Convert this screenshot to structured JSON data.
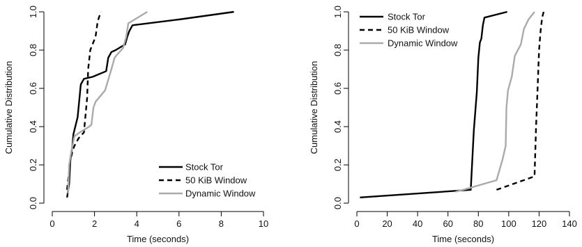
{
  "chart_data": [
    {
      "type": "line",
      "title": "",
      "xlabel": "Time (seconds)",
      "ylabel": "Cumulative Distribution",
      "xlim": [
        0,
        10
      ],
      "ylim": [
        0,
        1
      ],
      "xticks": [
        "0",
        "2",
        "4",
        "6",
        "8",
        "10"
      ],
      "yticks": [
        "0.0",
        "0.2",
        "0.4",
        "0.6",
        "0.8",
        "1.0"
      ],
      "grid": false,
      "legend_position": "bottom-right",
      "series": [
        {
          "name": "Stock Tor",
          "color": "#000000",
          "dash": "solid",
          "points": [
            [
              0.7,
              0.03
            ],
            [
              0.8,
              0.1
            ],
            [
              0.85,
              0.22
            ],
            [
              0.95,
              0.3
            ],
            [
              1.0,
              0.36
            ],
            [
              1.2,
              0.45
            ],
            [
              1.35,
              0.62
            ],
            [
              1.5,
              0.65
            ],
            [
              1.9,
              0.66
            ],
            [
              2.55,
              0.69
            ],
            [
              2.65,
              0.76
            ],
            [
              2.8,
              0.79
            ],
            [
              3.0,
              0.8
            ],
            [
              3.45,
              0.83
            ],
            [
              3.55,
              0.87
            ],
            [
              3.65,
              0.9
            ],
            [
              3.8,
              0.93
            ],
            [
              6.0,
              0.96
            ],
            [
              8.6,
              1.0
            ]
          ]
        },
        {
          "name": "50 KiB Window",
          "color": "#000000",
          "dash": "dashed",
          "points": [
            [
              0.7,
              0.07
            ],
            [
              0.85,
              0.22
            ],
            [
              0.95,
              0.27
            ],
            [
              1.05,
              0.3
            ],
            [
              1.25,
              0.34
            ],
            [
              1.5,
              0.37
            ],
            [
              1.65,
              0.55
            ],
            [
              1.7,
              0.7
            ],
            [
              1.8,
              0.8
            ],
            [
              2.05,
              0.87
            ],
            [
              2.15,
              0.95
            ],
            [
              2.3,
              1.0
            ]
          ]
        },
        {
          "name": "Dynamic Window",
          "color": "#aaaaaa",
          "dash": "solid",
          "points": [
            [
              0.75,
              0.05
            ],
            [
              0.8,
              0.2
            ],
            [
              0.9,
              0.27
            ],
            [
              1.05,
              0.35
            ],
            [
              1.3,
              0.37
            ],
            [
              1.75,
              0.4
            ],
            [
              1.85,
              0.41
            ],
            [
              1.95,
              0.5
            ],
            [
              2.05,
              0.53
            ],
            [
              2.5,
              0.59
            ],
            [
              2.8,
              0.7
            ],
            [
              2.95,
              0.76
            ],
            [
              3.1,
              0.78
            ],
            [
              3.35,
              0.81
            ],
            [
              3.5,
              0.87
            ],
            [
              3.6,
              0.94
            ],
            [
              3.9,
              0.96
            ],
            [
              4.5,
              1.0
            ]
          ]
        }
      ]
    },
    {
      "type": "line",
      "title": "",
      "xlabel": "Time (seconds)",
      "ylabel": "Cumulative Distribution",
      "xlim": [
        0,
        140
      ],
      "ylim": [
        0,
        1
      ],
      "xticks": [
        "0",
        "20",
        "40",
        "60",
        "80",
        "100",
        "120",
        "140"
      ],
      "yticks": [
        "0.0",
        "0.2",
        "0.4",
        "0.6",
        "0.8",
        "1.0"
      ],
      "grid": false,
      "legend_position": "top-left",
      "series": [
        {
          "name": "Stock Tor",
          "color": "#000000",
          "dash": "solid",
          "points": [
            [
              2,
              0.03
            ],
            [
              75,
              0.07
            ],
            [
              77,
              0.38
            ],
            [
              79,
              0.58
            ],
            [
              80,
              0.76
            ],
            [
              81,
              0.84
            ],
            [
              82,
              0.86
            ],
            [
              83,
              0.93
            ],
            [
              84,
              0.97
            ],
            [
              99,
              1.0
            ]
          ]
        },
        {
          "name": "50 KiB Window",
          "color": "#000000",
          "dash": "dashed",
          "points": [
            [
              92,
              0.07
            ],
            [
              117,
              0.14
            ],
            [
              118,
              0.4
            ],
            [
              119,
              0.6
            ],
            [
              120,
              0.8
            ],
            [
              121,
              0.9
            ],
            [
              122,
              0.97
            ],
            [
              123,
              1.0
            ]
          ]
        },
        {
          "name": "Dynamic Window",
          "color": "#aaaaaa",
          "dash": "solid",
          "points": [
            [
              65,
              0.06
            ],
            [
              70,
              0.07
            ],
            [
              92,
              0.12
            ],
            [
              96,
              0.23
            ],
            [
              98,
              0.3
            ],
            [
              98.5,
              0.5
            ],
            [
              99.5,
              0.59
            ],
            [
              102,
              0.66
            ],
            [
              104,
              0.77
            ],
            [
              106,
              0.8
            ],
            [
              108,
              0.83
            ],
            [
              110,
              0.91
            ],
            [
              113,
              0.96
            ],
            [
              117,
              1.0
            ]
          ]
        }
      ]
    }
  ]
}
